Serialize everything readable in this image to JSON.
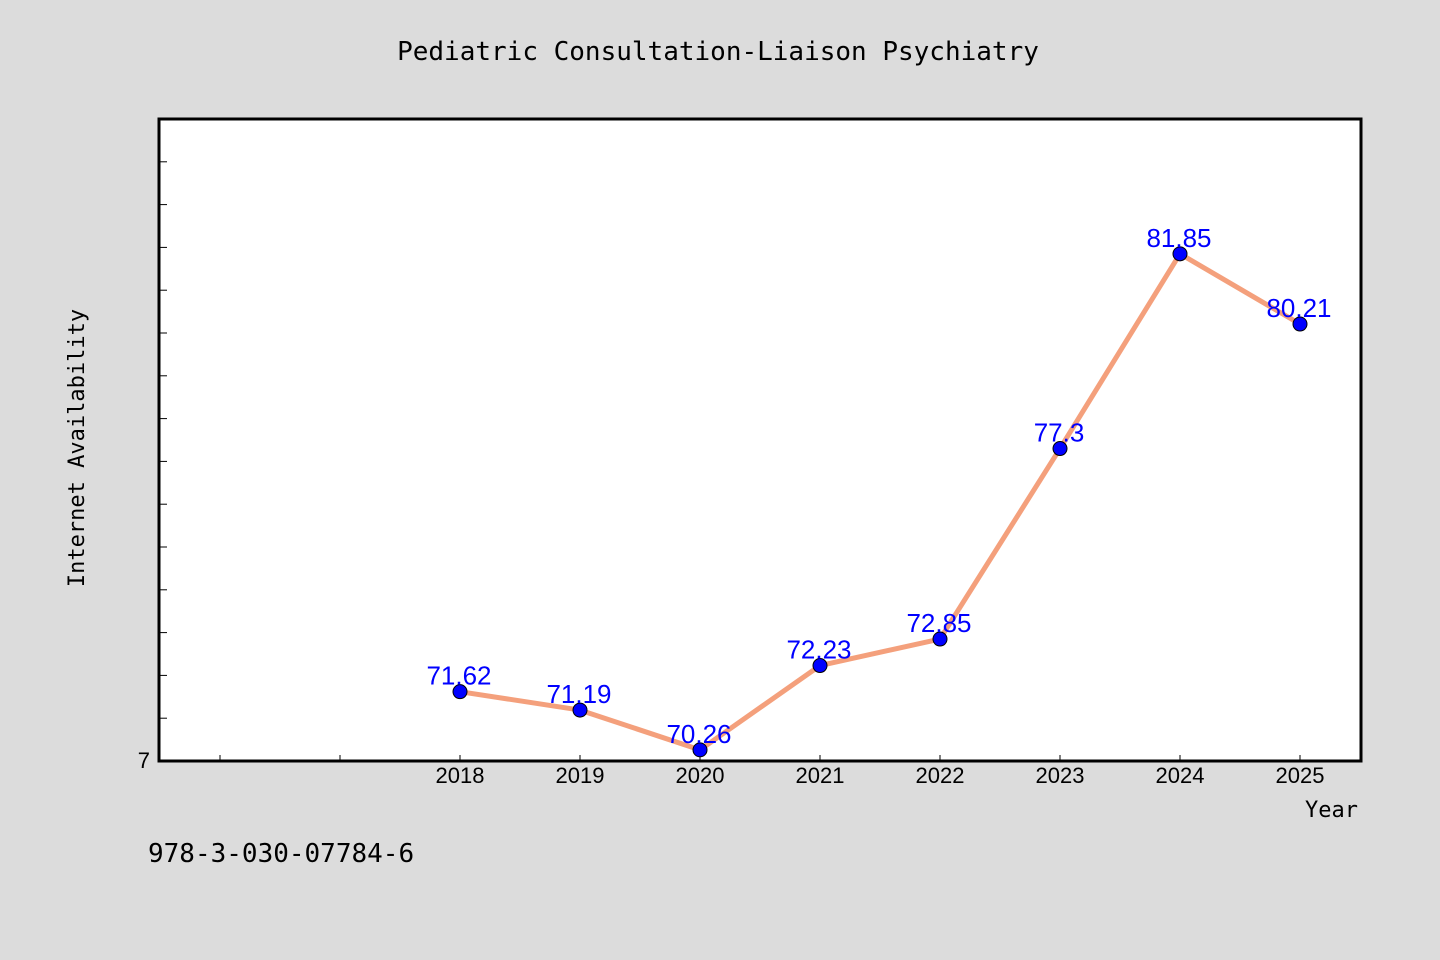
{
  "footer": {
    "isbn": "978-3-030-07784-6"
  },
  "chart_data": {
    "type": "line",
    "title": "Pediatric Consultation-Liaison Psychiatry",
    "xlabel": "Year",
    "ylabel": "Internet Availability",
    "x": [
      "2018",
      "2019",
      "2020",
      "2021",
      "2022",
      "2023",
      "2024",
      "2025"
    ],
    "series": [
      {
        "values": [
          71.62,
          71.19,
          70.26,
          72.23,
          72.85,
          77.3,
          81.85,
          80.21
        ]
      }
    ],
    "data_labels": [
      "71.62",
      "71.19",
      "70.26",
      "72.23",
      "72.85",
      "77.3",
      "81.85",
      "80.21"
    ],
    "y_tick_labels": [
      "7"
    ],
    "ylim": [
      70,
      85
    ],
    "grid": false,
    "legend": "none",
    "colors": {
      "line": "#f4a07c",
      "marker": "#0000ff",
      "label": "#0000ff",
      "background": "#dcdcdc",
      "plot_background": "#ffffff"
    }
  }
}
